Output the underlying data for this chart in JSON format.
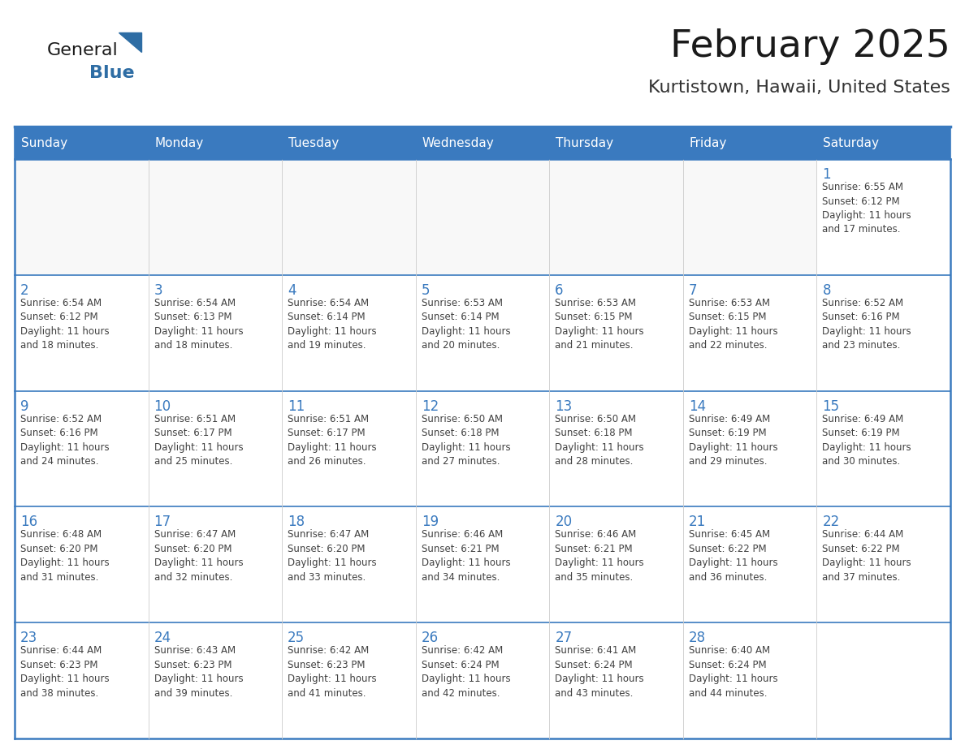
{
  "title": "February 2025",
  "subtitle": "Kurtistown, Hawaii, United States",
  "header_bg": "#3a7abf",
  "header_text": "#ffffff",
  "cell_bg": "#ffffff",
  "row_separator_color": "#3a7abf",
  "col_separator_color": "#cccccc",
  "border_color": "#3a7abf",
  "day_headers": [
    "Sunday",
    "Monday",
    "Tuesday",
    "Wednesday",
    "Thursday",
    "Friday",
    "Saturday"
  ],
  "title_color": "#1a1a1a",
  "subtitle_color": "#333333",
  "day_number_color": "#3a7abf",
  "text_color": "#404040",
  "logo_general_color": "#1a1a1a",
  "logo_blue_color": "#2e6da4",
  "calendar_data": [
    [
      {
        "day": "",
        "info": ""
      },
      {
        "day": "",
        "info": ""
      },
      {
        "day": "",
        "info": ""
      },
      {
        "day": "",
        "info": ""
      },
      {
        "day": "",
        "info": ""
      },
      {
        "day": "",
        "info": ""
      },
      {
        "day": "1",
        "info": "Sunrise: 6:55 AM\nSunset: 6:12 PM\nDaylight: 11 hours\nand 17 minutes."
      }
    ],
    [
      {
        "day": "2",
        "info": "Sunrise: 6:54 AM\nSunset: 6:12 PM\nDaylight: 11 hours\nand 18 minutes."
      },
      {
        "day": "3",
        "info": "Sunrise: 6:54 AM\nSunset: 6:13 PM\nDaylight: 11 hours\nand 18 minutes."
      },
      {
        "day": "4",
        "info": "Sunrise: 6:54 AM\nSunset: 6:14 PM\nDaylight: 11 hours\nand 19 minutes."
      },
      {
        "day": "5",
        "info": "Sunrise: 6:53 AM\nSunset: 6:14 PM\nDaylight: 11 hours\nand 20 minutes."
      },
      {
        "day": "6",
        "info": "Sunrise: 6:53 AM\nSunset: 6:15 PM\nDaylight: 11 hours\nand 21 minutes."
      },
      {
        "day": "7",
        "info": "Sunrise: 6:53 AM\nSunset: 6:15 PM\nDaylight: 11 hours\nand 22 minutes."
      },
      {
        "day": "8",
        "info": "Sunrise: 6:52 AM\nSunset: 6:16 PM\nDaylight: 11 hours\nand 23 minutes."
      }
    ],
    [
      {
        "day": "9",
        "info": "Sunrise: 6:52 AM\nSunset: 6:16 PM\nDaylight: 11 hours\nand 24 minutes."
      },
      {
        "day": "10",
        "info": "Sunrise: 6:51 AM\nSunset: 6:17 PM\nDaylight: 11 hours\nand 25 minutes."
      },
      {
        "day": "11",
        "info": "Sunrise: 6:51 AM\nSunset: 6:17 PM\nDaylight: 11 hours\nand 26 minutes."
      },
      {
        "day": "12",
        "info": "Sunrise: 6:50 AM\nSunset: 6:18 PM\nDaylight: 11 hours\nand 27 minutes."
      },
      {
        "day": "13",
        "info": "Sunrise: 6:50 AM\nSunset: 6:18 PM\nDaylight: 11 hours\nand 28 minutes."
      },
      {
        "day": "14",
        "info": "Sunrise: 6:49 AM\nSunset: 6:19 PM\nDaylight: 11 hours\nand 29 minutes."
      },
      {
        "day": "15",
        "info": "Sunrise: 6:49 AM\nSunset: 6:19 PM\nDaylight: 11 hours\nand 30 minutes."
      }
    ],
    [
      {
        "day": "16",
        "info": "Sunrise: 6:48 AM\nSunset: 6:20 PM\nDaylight: 11 hours\nand 31 minutes."
      },
      {
        "day": "17",
        "info": "Sunrise: 6:47 AM\nSunset: 6:20 PM\nDaylight: 11 hours\nand 32 minutes."
      },
      {
        "day": "18",
        "info": "Sunrise: 6:47 AM\nSunset: 6:20 PM\nDaylight: 11 hours\nand 33 minutes."
      },
      {
        "day": "19",
        "info": "Sunrise: 6:46 AM\nSunset: 6:21 PM\nDaylight: 11 hours\nand 34 minutes."
      },
      {
        "day": "20",
        "info": "Sunrise: 6:46 AM\nSunset: 6:21 PM\nDaylight: 11 hours\nand 35 minutes."
      },
      {
        "day": "21",
        "info": "Sunrise: 6:45 AM\nSunset: 6:22 PM\nDaylight: 11 hours\nand 36 minutes."
      },
      {
        "day": "22",
        "info": "Sunrise: 6:44 AM\nSunset: 6:22 PM\nDaylight: 11 hours\nand 37 minutes."
      }
    ],
    [
      {
        "day": "23",
        "info": "Sunrise: 6:44 AM\nSunset: 6:23 PM\nDaylight: 11 hours\nand 38 minutes."
      },
      {
        "day": "24",
        "info": "Sunrise: 6:43 AM\nSunset: 6:23 PM\nDaylight: 11 hours\nand 39 minutes."
      },
      {
        "day": "25",
        "info": "Sunrise: 6:42 AM\nSunset: 6:23 PM\nDaylight: 11 hours\nand 41 minutes."
      },
      {
        "day": "26",
        "info": "Sunrise: 6:42 AM\nSunset: 6:24 PM\nDaylight: 11 hours\nand 42 minutes."
      },
      {
        "day": "27",
        "info": "Sunrise: 6:41 AM\nSunset: 6:24 PM\nDaylight: 11 hours\nand 43 minutes."
      },
      {
        "day": "28",
        "info": "Sunrise: 6:40 AM\nSunset: 6:24 PM\nDaylight: 11 hours\nand 44 minutes."
      },
      {
        "day": "",
        "info": ""
      }
    ]
  ]
}
